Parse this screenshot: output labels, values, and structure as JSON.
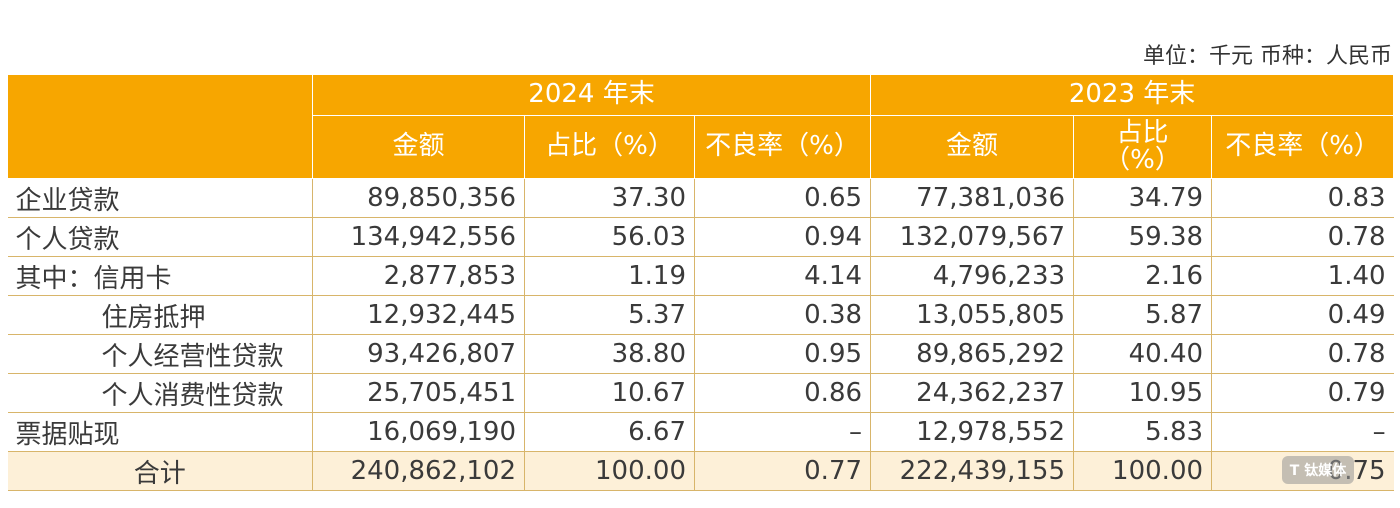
{
  "unit_note": "单位：千元 币种：人民币",
  "header": {
    "year_2024": "2024 年末",
    "year_2023": "2023 年末",
    "amount": "金额",
    "share": "占比（%）",
    "share_wrapped": "占比（%）",
    "npl_rate": "不良率（%）"
  },
  "rows": [
    {
      "label": "企业贷款",
      "a24": "89,850,356",
      "s24": "37.30",
      "n24": "0.65",
      "a23": "77,381,036",
      "s23": "34.79",
      "n23": "0.83"
    },
    {
      "label": "个人贷款",
      "a24": "134,942,556",
      "s24": "56.03",
      "n24": "0.94",
      "a23": "132,079,567",
      "s23": "59.38",
      "n23": "0.78"
    },
    {
      "label": "其中：信用卡",
      "a24": "2,877,853",
      "s24": "1.19",
      "n24": "4.14",
      "a23": "4,796,233",
      "s23": "2.16",
      "n23": "1.40"
    },
    {
      "label": "住房抵押",
      "a24": "12,932,445",
      "s24": "5.37",
      "n24": "0.38",
      "a23": "13,055,805",
      "s23": "5.87",
      "n23": "0.49"
    },
    {
      "label": "个人经营性贷款",
      "a24": "93,426,807",
      "s24": "38.80",
      "n24": "0.95",
      "a23": "89,865,292",
      "s23": "40.40",
      "n23": "0.78"
    },
    {
      "label": "个人消费性贷款",
      "a24": "25,705,451",
      "s24": "10.67",
      "n24": "0.86",
      "a23": "24,362,237",
      "s23": "10.95",
      "n23": "0.79"
    },
    {
      "label": "票据贴现",
      "a24": "16,069,190",
      "s24": "6.67",
      "n24": "–",
      "a23": "12,978,552",
      "s23": "5.83",
      "n23": "–"
    }
  ],
  "total": {
    "label": "合计",
    "a24": "240,862,102",
    "s24": "100.00",
    "n24": "0.77",
    "a23": "222,439,155",
    "s23": "100.00",
    "n23": "0.75"
  },
  "colors": {
    "header_bg": "#f7a600",
    "total_bg": "#fdf0d8"
  },
  "watermark_text": "T 钛媒体"
}
